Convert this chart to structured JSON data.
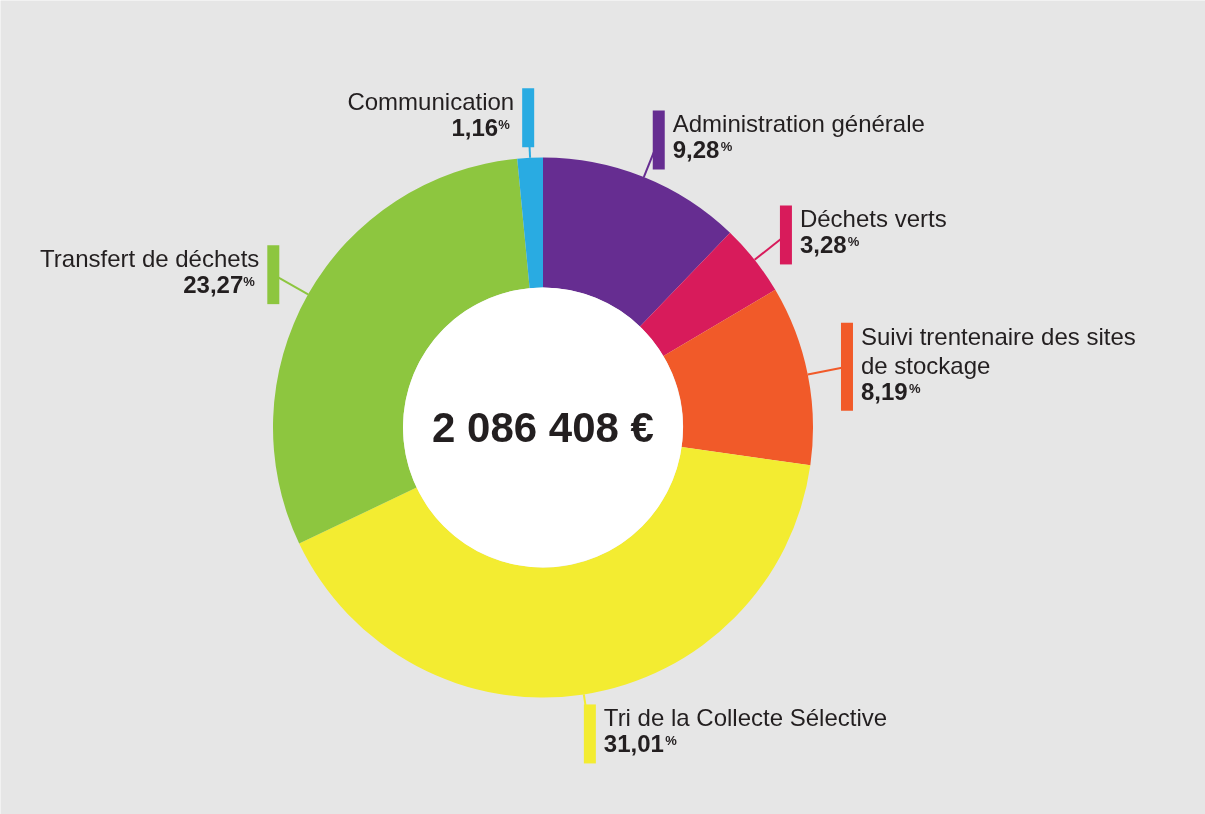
{
  "chart_data": {
    "type": "donut",
    "categories": [
      "Administration générale",
      "Déchets verts",
      "Suivi trentenaire des sites\nde stockage",
      "Tri de la Collecte Sélective",
      "Transfert de déchets",
      "Communication"
    ],
    "values": [
      9.28,
      3.28,
      8.19,
      31.01,
      23.27,
      1.16
    ],
    "value_labels": [
      "9,28$^{%}$",
      "3,28$^{%}$",
      "8,19$^{%}$",
      "31,01$^{%}$",
      "23,27$^{%}$",
      "1,16$^{%}$"
    ],
    "colors": [
      "#662d91",
      "#d81b5b",
      "#f15a29",
      "#f3ec31",
      "#8dc63f",
      "#29abe2"
    ],
    "annotations": [
      "2 086 408 €"
    ]
  }
}
